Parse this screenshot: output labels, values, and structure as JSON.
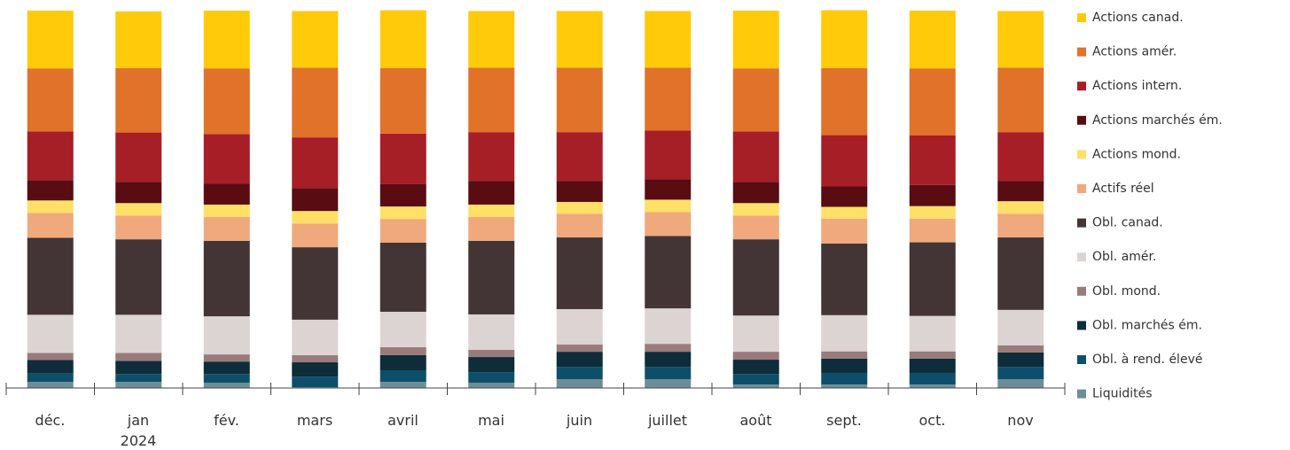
{
  "chart_data": {
    "type": "stacked_bar",
    "categories": [
      "déc.",
      "jan\n2024",
      "fév.",
      "mars",
      "avril",
      "mai",
      "juin",
      "juillet",
      "août",
      "sept.",
      "oct.",
      "nov"
    ],
    "ylim": [
      0,
      100
    ],
    "series": [
      {
        "name": "Actions canad.",
        "color": "#ffca0a",
        "values": [
          15.3,
          15.0,
          15.3,
          15.0,
          15.3,
          15.0,
          15.0,
          15.0,
          15.3,
          15.3,
          15.3,
          15.0
        ]
      },
      {
        "name": "Actions amér.",
        "color": "#e0722a",
        "values": [
          16.7,
          17.1,
          17.4,
          18.5,
          17.4,
          17.1,
          17.1,
          16.7,
          16.7,
          17.8,
          17.8,
          17.1
        ]
      },
      {
        "name": "Actions intern.",
        "color": "#a61e26",
        "values": [
          12.9,
          13.1,
          13.1,
          13.4,
          13.4,
          12.9,
          12.9,
          12.9,
          13.4,
          13.6,
          13.1,
          12.9
        ]
      },
      {
        "name": "Actions marchés ém.",
        "color": "#590c12",
        "values": [
          5.4,
          5.6,
          5.6,
          6.1,
          5.9,
          6.3,
          5.6,
          5.4,
          5.6,
          5.4,
          5.6,
          5.4
        ]
      },
      {
        "name": "Actions mond.",
        "color": "#fee066",
        "values": [
          3.3,
          3.3,
          3.3,
          3.3,
          3.3,
          3.3,
          3.1,
          3.3,
          3.3,
          3.1,
          3.3,
          3.3
        ]
      },
      {
        "name": "Actifs réel",
        "color": "#efa97c",
        "values": [
          6.6,
          6.3,
          6.3,
          6.3,
          6.3,
          6.3,
          6.3,
          6.3,
          6.3,
          6.6,
          6.3,
          6.3
        ]
      },
      {
        "name": "Obl. canad.",
        "color": "#433536",
        "values": [
          20.4,
          20.0,
          20.0,
          19.2,
          18.3,
          19.5,
          19.0,
          19.2,
          20.2,
          19.0,
          19.5,
          19.2
        ]
      },
      {
        "name": "Obl. amér.",
        "color": "#dcd3d3",
        "values": [
          10.1,
          10.1,
          10.1,
          9.4,
          9.4,
          9.4,
          9.4,
          9.4,
          9.6,
          9.6,
          9.4,
          9.4
        ]
      },
      {
        "name": "Obl. mond.",
        "color": "#9a7b7b",
        "values": [
          1.9,
          2.1,
          1.9,
          1.9,
          2.1,
          1.9,
          1.9,
          2.1,
          2.1,
          1.9,
          1.9,
          1.9
        ]
      },
      {
        "name": "Obl. marchés ém.",
        "color": "#0e2c3a",
        "values": [
          3.5,
          3.5,
          3.3,
          3.8,
          4.0,
          4.0,
          4.0,
          4.0,
          3.8,
          3.8,
          3.8,
          3.8
        ]
      },
      {
        "name": "Obl. à rend. élevé",
        "color": "#0d4f6b",
        "values": [
          2.3,
          2.1,
          2.3,
          2.8,
          3.1,
          2.8,
          3.3,
          3.3,
          2.8,
          3.1,
          3.1,
          3.3
        ]
      },
      {
        "name": "Liquidités",
        "color": "#6e8e97",
        "values": [
          1.6,
          1.6,
          1.4,
          0.2,
          1.6,
          1.4,
          2.3,
          2.3,
          0.9,
          0.9,
          0.9,
          2.3
        ]
      }
    ]
  }
}
